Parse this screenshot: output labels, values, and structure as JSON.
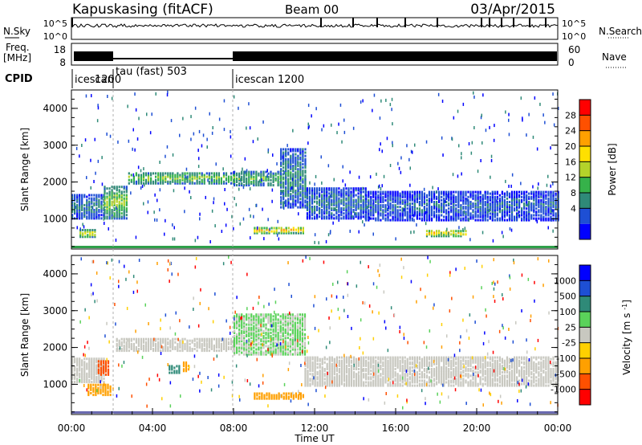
{
  "header": {
    "title": "Kapuskasing (fitACF)",
    "beam": "Beam 00",
    "date": "03/Apr/2015"
  },
  "status_panels": {
    "nsky": {
      "label": "N.Sky",
      "ticks_left": [
        "10^5",
        "10^0"
      ],
      "ticks_right": [
        "10^5",
        "10^0"
      ],
      "right_label": "N.Search"
    },
    "freq": {
      "label_line1": "Freq.",
      "label_line2": "[MHz]",
      "ticks_left": [
        "18",
        "8"
      ],
      "ticks_right": [
        "60",
        "0"
      ],
      "right_label": "Nave"
    },
    "cpid": {
      "label": "CPID",
      "segments": [
        "icescan",
        "1200",
        "tau (fast) 503",
        "icescan 1200"
      ]
    }
  },
  "chart_data": [
    {
      "type": "heatmap",
      "name": "power",
      "ylabel": "Slant Range [km]",
      "yticks": [
        1000,
        2000,
        3000,
        4000
      ],
      "ylim": [
        180,
        4500
      ],
      "xlim": [
        0,
        24
      ],
      "colorbar": {
        "label": "Power [dB]",
        "ticks": [
          "28",
          "24",
          "20",
          "16",
          "12",
          "8",
          "4"
        ],
        "colors": [
          "#0000ff",
          "#1e4fd4",
          "#2f8a78",
          "#36b24a",
          "#b4d32a",
          "#ffe000",
          "#ffa000",
          "#ff5000",
          "#ff0000"
        ]
      },
      "bands": [
        {
          "t0": 0.0,
          "t1": 1.6,
          "r0": 1000,
          "r1": 1650,
          "p": 8
        },
        {
          "t0": 1.6,
          "t1": 2.8,
          "r0": 1000,
          "r1": 1900,
          "p": 14
        },
        {
          "t0": 2.8,
          "t1": 8.0,
          "r0": 1950,
          "r1": 2250,
          "p": 14
        },
        {
          "t0": 8.0,
          "t1": 10.3,
          "r0": 1900,
          "r1": 2300,
          "p": 12
        },
        {
          "t0": 10.3,
          "t1": 11.6,
          "r0": 1300,
          "r1": 2900,
          "p": 9
        },
        {
          "t0": 11.6,
          "t1": 14.5,
          "r0": 1000,
          "r1": 1850,
          "p": 7
        },
        {
          "t0": 14.5,
          "t1": 24.0,
          "r0": 950,
          "r1": 1750,
          "p": 6
        },
        {
          "t0": 9.0,
          "t1": 11.5,
          "r0": 600,
          "r1": 760,
          "p": 22
        },
        {
          "t0": 17.5,
          "t1": 19.5,
          "r0": 520,
          "r1": 700,
          "p": 20
        },
        {
          "t0": 0.4,
          "t1": 1.2,
          "r0": 500,
          "r1": 700,
          "p": 18
        }
      ]
    },
    {
      "type": "heatmap",
      "name": "velocity",
      "ylabel": "Slant Range [km]",
      "xlabel": "Time UT",
      "xticks": [
        "00:00",
        "04:00",
        "08:00",
        "12:00",
        "16:00",
        "20:00",
        "00:00"
      ],
      "yticks": [
        1000,
        2000,
        3000,
        4000
      ],
      "ylim": [
        180,
        4500
      ],
      "xlim": [
        0,
        24
      ],
      "colorbar": {
        "label": "Velocity [m s^-1]",
        "ticks": [
          "1000",
          "500",
          "100",
          "25",
          "-25",
          "-100",
          "-500",
          "-1000"
        ],
        "colors": [
          "#ff0000",
          "#ff5000",
          "#ffa000",
          "#ffd000",
          "#c8c8c0",
          "#5ad25a",
          "#2f8a78",
          "#1e4fd4",
          "#0000ff"
        ]
      },
      "bands": [
        {
          "t0": 0.0,
          "t1": 1.6,
          "r0": 1050,
          "r1": 1700,
          "v": 0
        },
        {
          "t0": 2.2,
          "t1": 8.0,
          "r0": 1900,
          "r1": 2250,
          "v": 0
        },
        {
          "t0": 8.0,
          "t1": 11.5,
          "r0": 1800,
          "r1": 2900,
          "v": 30
        },
        {
          "t0": 11.5,
          "t1": 24.0,
          "r0": 950,
          "r1": 1750,
          "v": 0
        },
        {
          "t0": 0.8,
          "t1": 2.0,
          "r0": 700,
          "r1": 1000,
          "v": -400
        },
        {
          "t0": 1.3,
          "t1": 1.9,
          "r0": 1250,
          "r1": 1650,
          "v": -900
        },
        {
          "t0": 9.0,
          "t1": 11.5,
          "r0": 600,
          "r1": 760,
          "v": -200
        },
        {
          "t0": 4.8,
          "t1": 5.3,
          "r0": 1300,
          "r1": 1500,
          "v": 150
        },
        {
          "t0": 5.5,
          "t1": 5.8,
          "r0": 1350,
          "r1": 1600,
          "v": -400
        }
      ]
    }
  ]
}
